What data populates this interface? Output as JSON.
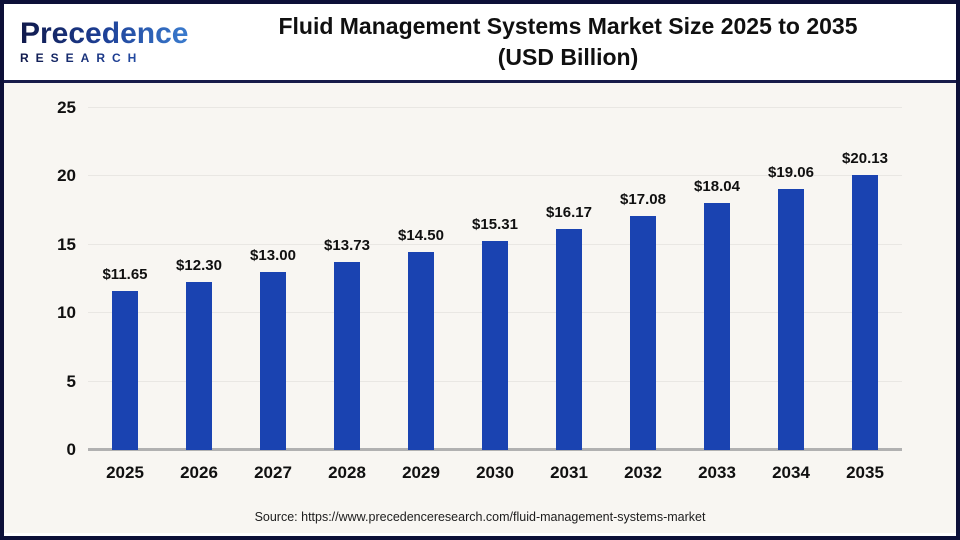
{
  "header": {
    "logo_line1": "Precedence",
    "logo_line2": "RESEARCH",
    "title_line1": "Fluid Management Systems Market Size 2025 to 2035",
    "title_line2": "(USD Billion)"
  },
  "chart_data": {
    "type": "bar",
    "title": "Fluid Management Systems Market Size 2025 to 2035 (USD Billion)",
    "categories": [
      "2025",
      "2026",
      "2027",
      "2028",
      "2029",
      "2030",
      "2031",
      "2032",
      "2033",
      "2034",
      "2035"
    ],
    "values": [
      11.65,
      12.3,
      13.0,
      13.73,
      14.5,
      15.31,
      16.17,
      17.08,
      18.04,
      19.06,
      20.13
    ],
    "value_labels": [
      "$11.65",
      "$12.30",
      "$13.00",
      "$13.73",
      "$14.50",
      "$15.31",
      "$16.17",
      "$17.08",
      "$18.04",
      "$19.06",
      "$20.13"
    ],
    "xlabel": "",
    "ylabel": "",
    "ylim": [
      0,
      25
    ],
    "yticks": [
      0,
      5,
      10,
      15,
      20,
      25
    ],
    "grid": true,
    "legend": false,
    "bar_color": "#1a43b1",
    "background_color": "#f8f6f2",
    "gridline_color": "#e9e7e3",
    "baseline_color": "#b1b1b1"
  },
  "footer": {
    "source": "Source: https://www.precedenceresearch.com/fluid-management-systems-market"
  }
}
